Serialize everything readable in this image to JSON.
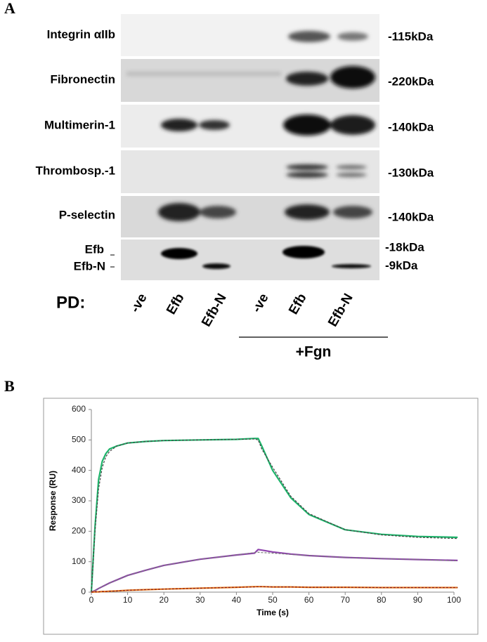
{
  "panel_a": {
    "label": "A",
    "rows": [
      {
        "labels": [
          "Integrin αIIb"
        ],
        "sizes": [
          "-115kDa"
        ]
      },
      {
        "labels": [
          "Fibronectin"
        ],
        "sizes": [
          "-220kDa"
        ]
      },
      {
        "labels": [
          "Multimerin-1"
        ],
        "sizes": [
          "-140kDa"
        ]
      },
      {
        "labels": [
          "Thrombosp.-1"
        ],
        "sizes": [
          "-130kDa"
        ]
      },
      {
        "labels": [
          "P-selectin"
        ],
        "sizes": [
          "-140kDa"
        ]
      },
      {
        "labels": [
          "Efb",
          "Efb-N"
        ],
        "sizes": [
          "-18kDa",
          "-9kDa"
        ]
      }
    ],
    "pd_label": "PD:",
    "lanes": [
      "-ve",
      "Efb",
      "Efb-N",
      "-ve",
      "Efb",
      "Efb-N"
    ],
    "group_label": "+Fgn"
  },
  "panel_b": {
    "label": "B"
  },
  "chart_data": {
    "type": "line",
    "x_label": "Time (s)",
    "y_label": "Response (RU)",
    "x": [
      0,
      1,
      2,
      3,
      4,
      5,
      7,
      10,
      15,
      20,
      30,
      40,
      45,
      46,
      47,
      50,
      55,
      60,
      70,
      80,
      90,
      101
    ],
    "series": [
      {
        "color": "#1db36a",
        "style": "solid",
        "values": [
          0,
          215,
          370,
          430,
          455,
          470,
          480,
          490,
          495,
          498,
          500,
          502,
          505,
          505,
          480,
          400,
          310,
          255,
          205,
          190,
          183,
          180
        ]
      },
      {
        "color": "#444444",
        "style": "dashed",
        "values": [
          0,
          200,
          340,
          410,
          445,
          462,
          480,
          490,
          495,
          498,
          500,
          502,
          503,
          500,
          470,
          410,
          315,
          258,
          205,
          188,
          180,
          176
        ]
      },
      {
        "color": "#8e44ad",
        "style": "solid",
        "values": [
          0,
          5,
          12,
          18,
          24,
          30,
          40,
          55,
          72,
          88,
          108,
          122,
          128,
          140,
          138,
          132,
          125,
          120,
          114,
          110,
          107,
          104
        ]
      },
      {
        "color": "#777777",
        "style": "dashed",
        "values": [
          0,
          6,
          12,
          18,
          24,
          30,
          40,
          55,
          72,
          88,
          108,
          122,
          130,
          131,
          130,
          128,
          124,
          120,
          114,
          110,
          107,
          103
        ]
      },
      {
        "color": "#e67e22",
        "style": "solid",
        "values": [
          0,
          1,
          1,
          2,
          2,
          3,
          4,
          6,
          8,
          10,
          13,
          16,
          18,
          18,
          18,
          17,
          17,
          16,
          16,
          15,
          15,
          15
        ]
      },
      {
        "color": "#8b1a1a",
        "style": "dashed",
        "values": [
          0,
          1,
          1,
          2,
          2,
          3,
          4,
          6,
          8,
          10,
          13,
          16,
          17,
          18,
          18,
          17,
          17,
          16,
          16,
          15,
          15,
          15
        ]
      }
    ],
    "xlim": [
      0,
      100
    ],
    "ylim": [
      0,
      600
    ],
    "xticks": [
      0,
      10,
      20,
      30,
      40,
      50,
      60,
      70,
      80,
      90,
      100
    ],
    "yticks": [
      0,
      100,
      200,
      300,
      400,
      500,
      600
    ]
  }
}
